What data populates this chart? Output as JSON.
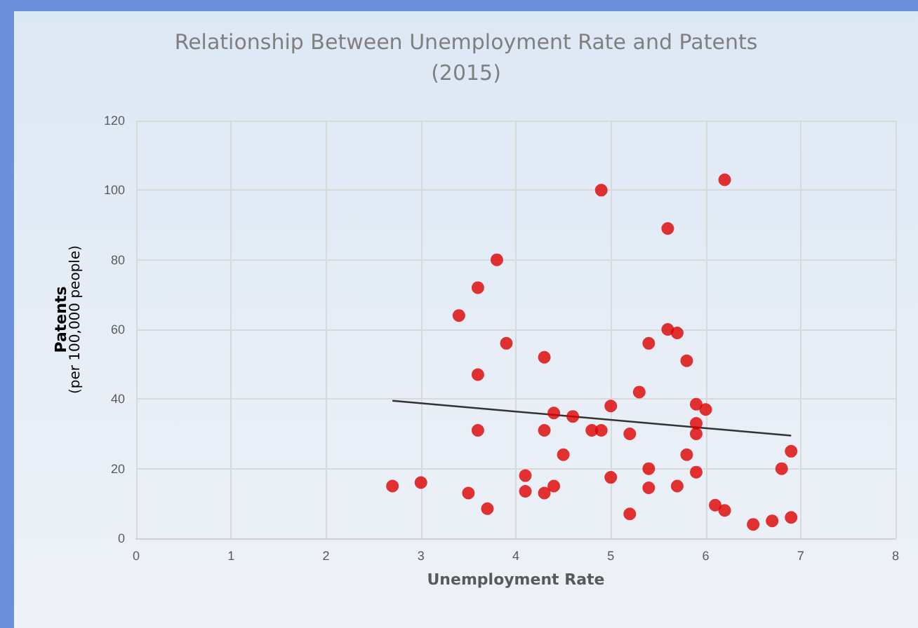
{
  "chart_data": {
    "type": "scatter",
    "title": "Relationship Between Unemployment Rate and Patents\n(2015)",
    "xlabel": "Unemployment Rate",
    "ylabel": "Patents\n(per 100,000 people)",
    "xlim": [
      0,
      8
    ],
    "xticks": [
      0,
      1,
      2,
      3,
      4,
      5,
      6,
      7,
      8
    ],
    "ylim": [
      0,
      120
    ],
    "yticks": [
      0,
      20,
      40,
      60,
      80,
      100,
      120
    ],
    "grid": true,
    "series": [
      {
        "marker": "circle",
        "color": "#dd0000",
        "x": [
          2.7,
          3.0,
          3.4,
          3.5,
          3.6,
          3.6,
          3.6,
          3.7,
          3.8,
          3.9,
          4.1,
          4.1,
          4.3,
          4.3,
          4.3,
          4.4,
          4.4,
          4.5,
          4.6,
          4.8,
          4.9,
          4.9,
          5.0,
          5.0,
          5.2,
          5.2,
          5.3,
          5.4,
          5.4,
          5.4,
          5.6,
          5.6,
          5.7,
          5.7,
          5.8,
          5.8,
          5.9,
          5.9,
          5.9,
          5.9,
          6.0,
          6.1,
          6.2,
          6.2,
          6.5,
          6.7,
          6.8,
          6.9,
          6.9
        ],
        "values": [
          15,
          16,
          64,
          13,
          72,
          47,
          31,
          8.5,
          80,
          56,
          18,
          13.5,
          52,
          31,
          13,
          36,
          15,
          24,
          35,
          31,
          100,
          31,
          38,
          17.5,
          30,
          7,
          42,
          56,
          20,
          14.5,
          89,
          60,
          59,
          15,
          51,
          24,
          38.5,
          33,
          30,
          19,
          37,
          9.5,
          103,
          8,
          4,
          5,
          20,
          25,
          6
        ]
      },
      {
        "type": "line",
        "marker": "none",
        "color": "#333333",
        "x": [
          2.7,
          6.9
        ],
        "values": [
          39.5,
          29.5
        ]
      }
    ]
  }
}
